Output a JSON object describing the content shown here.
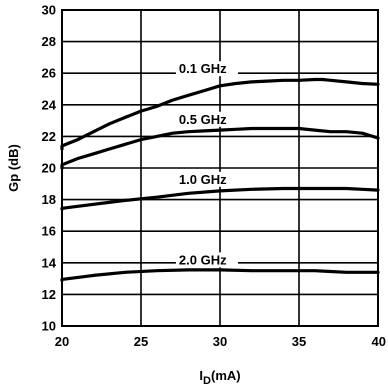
{
  "chart_data": {
    "type": "line",
    "title": "",
    "xlabel": {
      "main": "I",
      "sub": "D",
      "rest": "(mA)"
    },
    "ylabel": "Gp (dB)",
    "xlim": [
      20,
      40
    ],
    "ylim": [
      10,
      30
    ],
    "xticks": [
      20,
      25,
      30,
      35,
      40
    ],
    "yticks": [
      10,
      12,
      14,
      16,
      18,
      20,
      22,
      24,
      26,
      28,
      30
    ],
    "grid": true,
    "legend": "none",
    "series": [
      {
        "name": "0.1 GHz",
        "x": [
          19.6,
          20,
          21,
          22,
          23,
          24,
          25,
          26,
          27,
          28,
          29,
          30,
          31,
          32,
          33,
          34,
          35,
          36,
          36.5,
          37,
          38,
          39,
          40
        ],
        "y": [
          21.2,
          21.4,
          21.8,
          22.3,
          22.8,
          23.2,
          23.6,
          23.9,
          24.3,
          24.6,
          24.9,
          25.2,
          25.35,
          25.45,
          25.5,
          25.55,
          25.55,
          25.6,
          25.6,
          25.55,
          25.45,
          25.35,
          25.3
        ]
      },
      {
        "name": "0.5 GHz",
        "x": [
          19.6,
          20,
          21,
          22,
          23,
          24,
          25,
          26,
          27,
          28,
          29,
          30,
          31,
          32,
          33,
          34,
          35,
          36,
          37,
          38,
          39,
          40
        ],
        "y": [
          20.0,
          20.2,
          20.6,
          20.9,
          21.2,
          21.5,
          21.8,
          22.0,
          22.2,
          22.3,
          22.35,
          22.4,
          22.45,
          22.5,
          22.5,
          22.5,
          22.5,
          22.4,
          22.3,
          22.3,
          22.2,
          21.9
        ]
      },
      {
        "name": "1.0 GHz",
        "x": [
          19.6,
          20,
          22,
          24,
          26,
          28,
          30,
          32,
          34,
          36,
          38,
          39,
          40
        ],
        "y": [
          17.4,
          17.45,
          17.7,
          17.95,
          18.15,
          18.4,
          18.55,
          18.65,
          18.7,
          18.7,
          18.7,
          18.65,
          18.6
        ]
      },
      {
        "name": "2.0 GHz",
        "x": [
          19.6,
          20,
          22,
          24,
          26,
          28,
          30,
          32,
          34,
          36,
          37,
          38,
          40
        ],
        "y": [
          12.9,
          12.95,
          13.2,
          13.4,
          13.5,
          13.55,
          13.55,
          13.5,
          13.5,
          13.5,
          13.45,
          13.4,
          13.4
        ]
      }
    ],
    "series_label_positions": [
      {
        "name": "0.1 GHz",
        "x": 27.4,
        "y": 26.0
      },
      {
        "name": "0.5 GHz",
        "x": 27.4,
        "y": 22.8
      },
      {
        "name": "1.0 GHz",
        "x": 27.4,
        "y": 19.0
      },
      {
        "name": "2.0 GHz",
        "x": 27.4,
        "y": 13.9
      }
    ],
    "colors": {
      "line": "#000000",
      "grid": "#000000",
      "background": "#ffffff"
    }
  }
}
